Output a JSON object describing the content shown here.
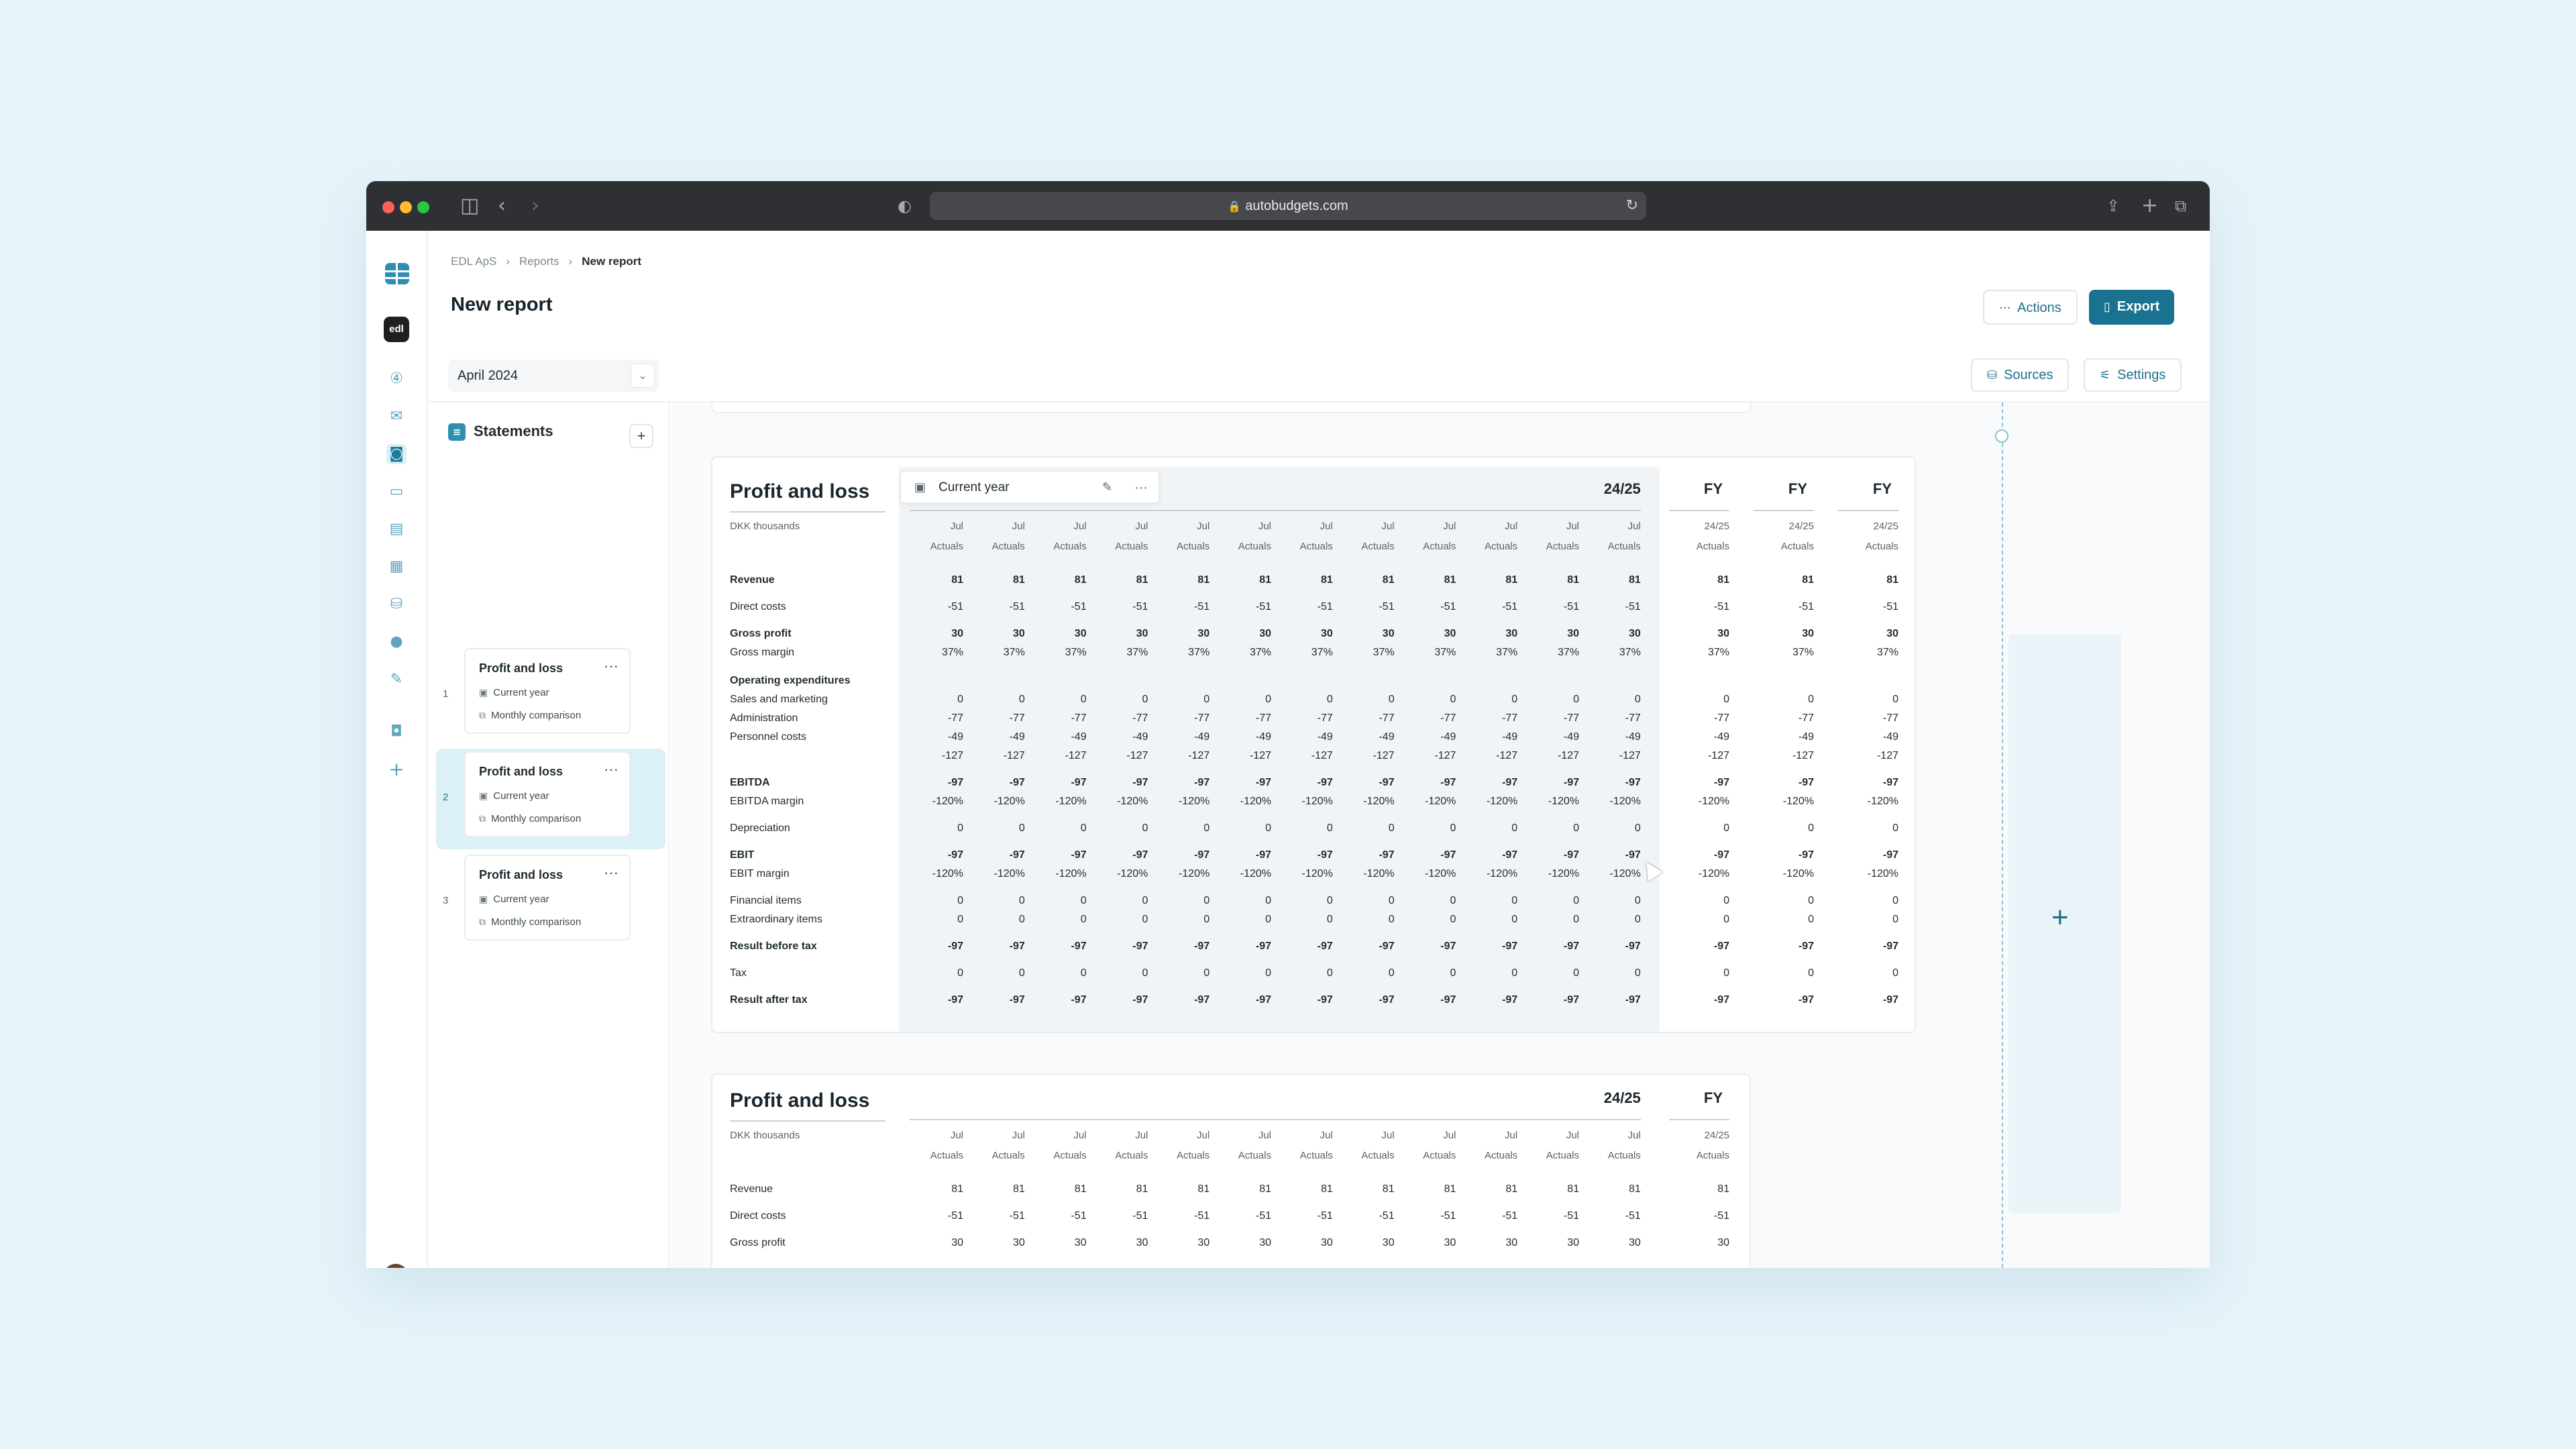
{
  "browser": {
    "url": "autobudgets.com"
  },
  "rail": {
    "org_badge": "edl",
    "active_index": 4,
    "items": [
      "rocket-icon",
      "inbox-icon",
      "briefcase-icon",
      "grid-icon",
      "document-icon",
      "table-icon",
      "database-icon",
      "users-icon",
      "puzzle-icon",
      "box-icon"
    ],
    "add": "+"
  },
  "breadcrumb": [
    "EDL ApS",
    "Reports",
    "New report"
  ],
  "page": {
    "title": "New report"
  },
  "buttons": {
    "actions": "Actions",
    "export": "Export",
    "sources": "Sources",
    "settings": "Settings"
  },
  "period_select": {
    "value": "April 2024"
  },
  "statements": {
    "title": "Statements",
    "add": "+",
    "items": [
      {
        "num": "1",
        "title": "Profit and loss",
        "period": "Current year",
        "comparison": "Monthly comparison"
      },
      {
        "num": "2",
        "title": "Profit and loss",
        "period": "Current year",
        "comparison": "Monthly comparison"
      },
      {
        "num": "3",
        "title": "Profit and loss",
        "period": "Current year",
        "comparison": "Monthly comparison"
      }
    ]
  },
  "report1": {
    "title": "Profit and loss",
    "unit": "DKK thousands",
    "column_group": "Current year",
    "group_year": "24/25",
    "fy_label": "FY",
    "month_header": {
      "top": "Jul",
      "bottom": "Actuals"
    },
    "fy_header": {
      "top": "24/25",
      "bottom": "Actuals"
    },
    "month_columns": 12,
    "fy_columns": 3,
    "rows": [
      {
        "label": "Revenue",
        "bold": true,
        "value": "81"
      },
      {
        "label": "Direct costs",
        "bold": false,
        "value": "-51"
      },
      {
        "label": "Gross profit",
        "bold": true,
        "value": "30"
      },
      {
        "label": "Gross margin",
        "bold": false,
        "value": "37%"
      },
      {
        "label": "Operating expenditures",
        "bold": true,
        "value": ""
      },
      {
        "label": "Sales and marketing",
        "bold": false,
        "value": "0"
      },
      {
        "label": "Administration",
        "bold": false,
        "value": "-77"
      },
      {
        "label": "Personnel costs",
        "bold": false,
        "value": "-49"
      },
      {
        "label": "",
        "bold": false,
        "value": "-127"
      },
      {
        "label": "EBITDA",
        "bold": true,
        "value": "-97"
      },
      {
        "label": "EBITDA margin",
        "bold": false,
        "value": "-120%"
      },
      {
        "label": "Depreciation",
        "bold": false,
        "value": "0"
      },
      {
        "label": "EBIT",
        "bold": true,
        "value": "-97"
      },
      {
        "label": "EBIT margin",
        "bold": false,
        "value": "-120%"
      },
      {
        "label": "Financial items",
        "bold": false,
        "value": "0"
      },
      {
        "label": "Extraordinary items",
        "bold": false,
        "value": "0"
      },
      {
        "label": "Result before tax",
        "bold": true,
        "value": "-97"
      },
      {
        "label": "Tax",
        "bold": false,
        "value": "0"
      },
      {
        "label": "Result after tax",
        "bold": true,
        "value": "-97"
      }
    ]
  },
  "report2": {
    "title": "Profit and loss",
    "unit": "DKK thousands",
    "group_year": "24/25",
    "fy_label": "FY",
    "month_header": {
      "top": "Jul",
      "bottom": "Actuals"
    },
    "fy_header": {
      "top": "24/25",
      "bottom": "Actuals"
    },
    "month_columns": 12,
    "fy_columns": 1,
    "rows": [
      {
        "label": "Revenue",
        "bold": false,
        "value": "81"
      },
      {
        "label": "Direct costs",
        "bold": false,
        "value": "-51"
      },
      {
        "label": "Gross profit",
        "bold": false,
        "value": "30"
      }
    ]
  },
  "canvas": {
    "add_column": "+"
  }
}
